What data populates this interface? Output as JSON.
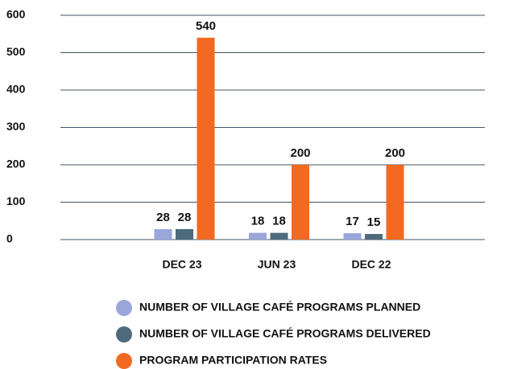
{
  "chart_data": {
    "type": "bar",
    "categories": [
      "DEC 23",
      "JUN 23",
      "DEC 22"
    ],
    "series": [
      {
        "name": "NUMBER OF VILLAGE CAFÉ PROGRAMS PLANNED",
        "color": "#9aa6da",
        "values": [
          28,
          18,
          17
        ]
      },
      {
        "name": "NUMBER OF VILLAGE CAFÉ PROGRAMS DELIVERED",
        "color": "#4e6a7c",
        "values": [
          28,
          18,
          15
        ]
      },
      {
        "name": "PROGRAM PARTICIPATION RATES",
        "color": "#f26a22",
        "values": [
          540,
          200,
          200
        ]
      }
    ],
    "ylim": [
      0,
      600
    ],
    "yticks": [
      0,
      100,
      200,
      300,
      400,
      500,
      600
    ],
    "grid": true
  }
}
